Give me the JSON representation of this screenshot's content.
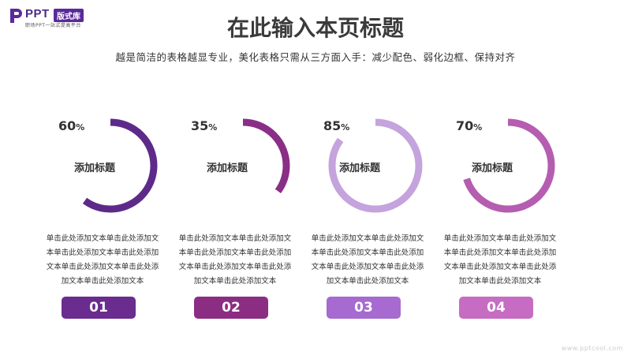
{
  "logo": {
    "brand": "PPT",
    "tag": "版式库",
    "sub": "职场PPT一站式提高平台",
    "mark_color": "#5b2a9a"
  },
  "header": {
    "title": "在此输入本页标题",
    "subtitle": "越是简洁的表格越显专业，美化表格只需从三方面入手：减少配色、弱化边框、保持对齐"
  },
  "items": [
    {
      "percent": 60,
      "percent_text": "60",
      "label": "添加标题",
      "desc": [
        "单击此处添加文本单击此处添加文",
        "本单击此处添加文本单击此处添加",
        "文本单击此处添加文本单击此处添",
        "加文本单击此处添加文本"
      ],
      "number": "01",
      "color": "#5e2a8a",
      "badge_color": "#6a2c8e"
    },
    {
      "percent": 35,
      "percent_text": "35",
      "label": "添加标题",
      "desc": [
        "单击此处添加文本单击此处添加文",
        "本单击此处添加文本单击此处添加",
        "文本单击此处添加文本单击此处添",
        "加文本单击此处添加文本"
      ],
      "number": "02",
      "color": "#8a2f86",
      "badge_color": "#8c2d84"
    },
    {
      "percent": 85,
      "percent_text": "85",
      "label": "添加标题",
      "desc": [
        "单击此处添加文本单击此处添加文",
        "本单击此处添加文本单击此处添加",
        "文本单击此处添加文本单击此处添",
        "加文本单击此处添加文本"
      ],
      "number": "03",
      "color": "#c5a3dd",
      "badge_color": "#a66ad0"
    },
    {
      "percent": 70,
      "percent_text": "70",
      "label": "添加标题",
      "desc": [
        "单击此处添加文本单击此处添加文",
        "本单击此处添加文本单击此处添加",
        "文本单击此处添加文本单击此处添",
        "加文本单击此处添加文本"
      ],
      "number": "04",
      "color": "#b55db0",
      "badge_color": "#c66cc3"
    }
  ],
  "watermark": "www.pptcool.com"
}
